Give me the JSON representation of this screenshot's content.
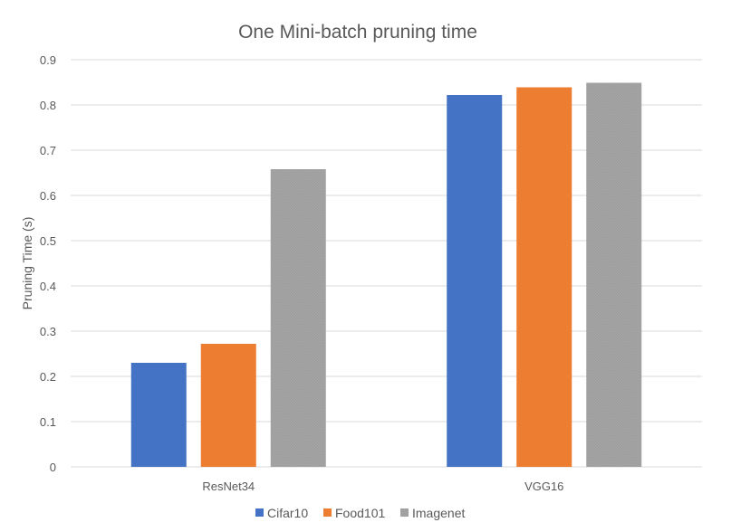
{
  "chart_data": {
    "type": "bar",
    "title": "One Mini-batch pruning time",
    "xlabel": "",
    "ylabel": "Pruning Time (s)",
    "categories": [
      "ResNet34",
      "VGG16"
    ],
    "series": [
      {
        "name": "Cifar10",
        "values": [
          0.23,
          0.822
        ],
        "color": "#4472C4"
      },
      {
        "name": "Food101",
        "values": [
          0.272,
          0.839
        ],
        "color": "#ED7D31"
      },
      {
        "name": "Imagenet",
        "values": [
          0.658,
          0.849
        ],
        "color": "#A5A5A5"
      }
    ],
    "ylim": [
      0,
      0.9
    ],
    "yticks": [
      "0",
      "0.1",
      "0.2",
      "0.3",
      "0.4",
      "0.5",
      "0.6",
      "0.7",
      "0.8",
      "0.9"
    ],
    "grid": true,
    "legend_position": "bottom"
  }
}
